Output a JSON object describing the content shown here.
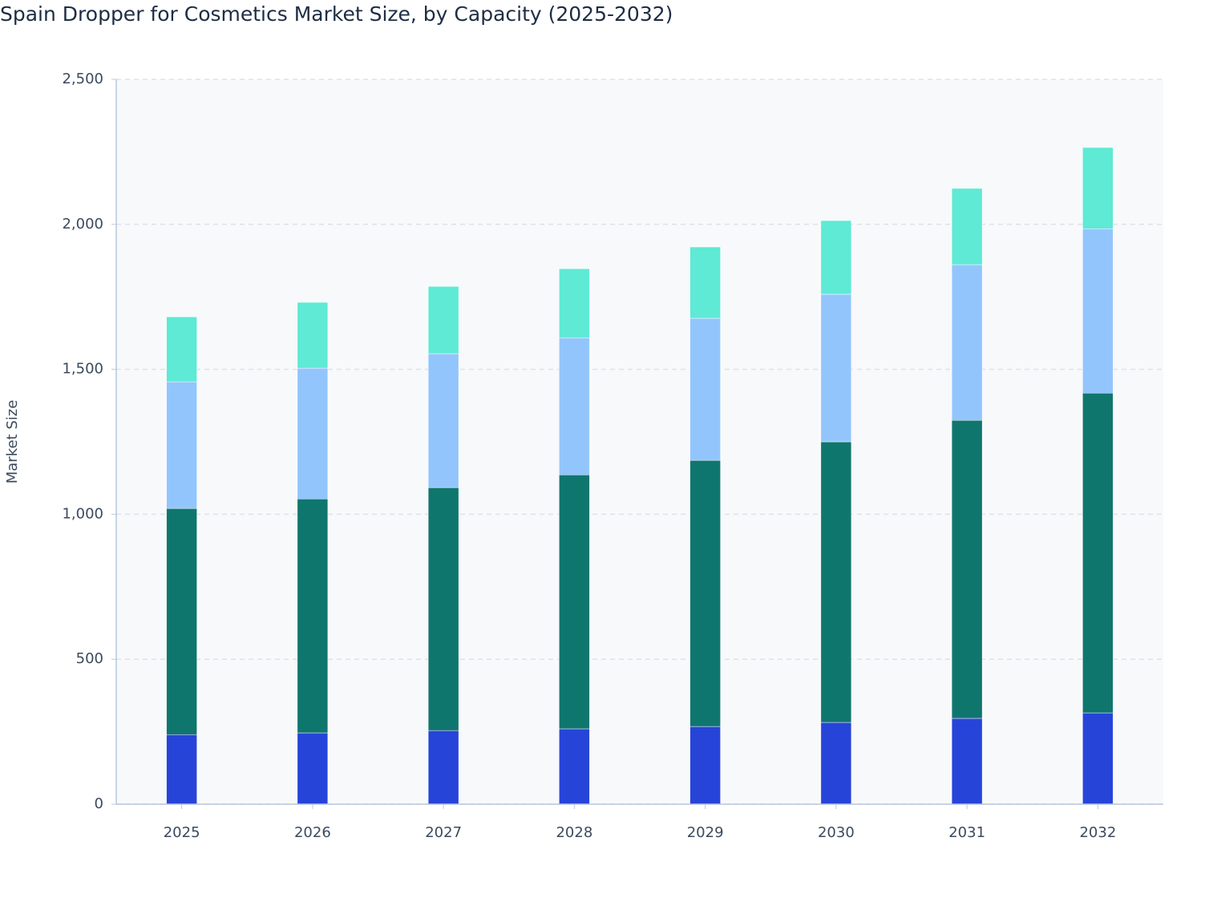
{
  "chart_data": {
    "type": "stacked-bar",
    "title": "Spain Dropper for Cosmetics Market Size, by Capacity (2025-2032)",
    "y_label": "Market Size",
    "categories": [
      "2025",
      "2026",
      "2027",
      "2028",
      "2029",
      "2030",
      "2031",
      "2032"
    ],
    "series": [
      {
        "color": "#2744d9",
        "values": [
          240,
          246,
          254,
          260,
          268,
          282,
          296,
          315
        ]
      },
      {
        "color": "#0f766e",
        "values": [
          780,
          807,
          838,
          876,
          918,
          968,
          1028,
          1103
        ]
      },
      {
        "color": "#93c5fd",
        "values": [
          437,
          451,
          462,
          473,
          490,
          509,
          537,
          567
        ]
      },
      {
        "color": "#5eead4",
        "values": [
          224,
          227,
          232,
          238,
          246,
          254,
          263,
          280
        ]
      }
    ],
    "ylim": [
      0,
      2500
    ],
    "yticks": [
      0,
      500,
      {
        "value": 1000,
        "label": "1,000"
      },
      {
        "value": 1500,
        "label": "1,500"
      },
      {
        "value": 2000,
        "label": "2,000"
      },
      {
        "value": 2500,
        "label": "2,500"
      }
    ],
    "grid": true
  }
}
